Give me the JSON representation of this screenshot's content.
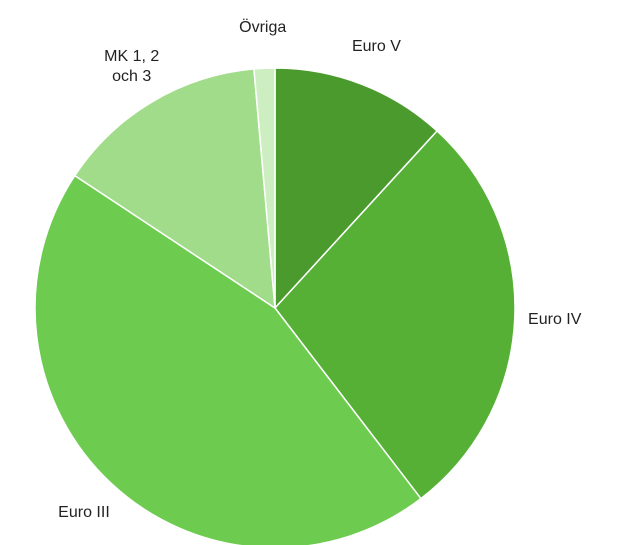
{
  "chart_data": {
    "type": "pie",
    "categories": [
      "Euro V",
      "Euro IV",
      "Euro III",
      "MK 1, 2 och 3",
      "Övriga"
    ],
    "values": [
      11.8,
      27.8,
      44.7,
      14.3,
      1.4
    ],
    "colors": [
      "#4a9a2e",
      "#55b035",
      "#6dcb50",
      "#a0dc8a",
      "#cdeec0"
    ]
  }
}
